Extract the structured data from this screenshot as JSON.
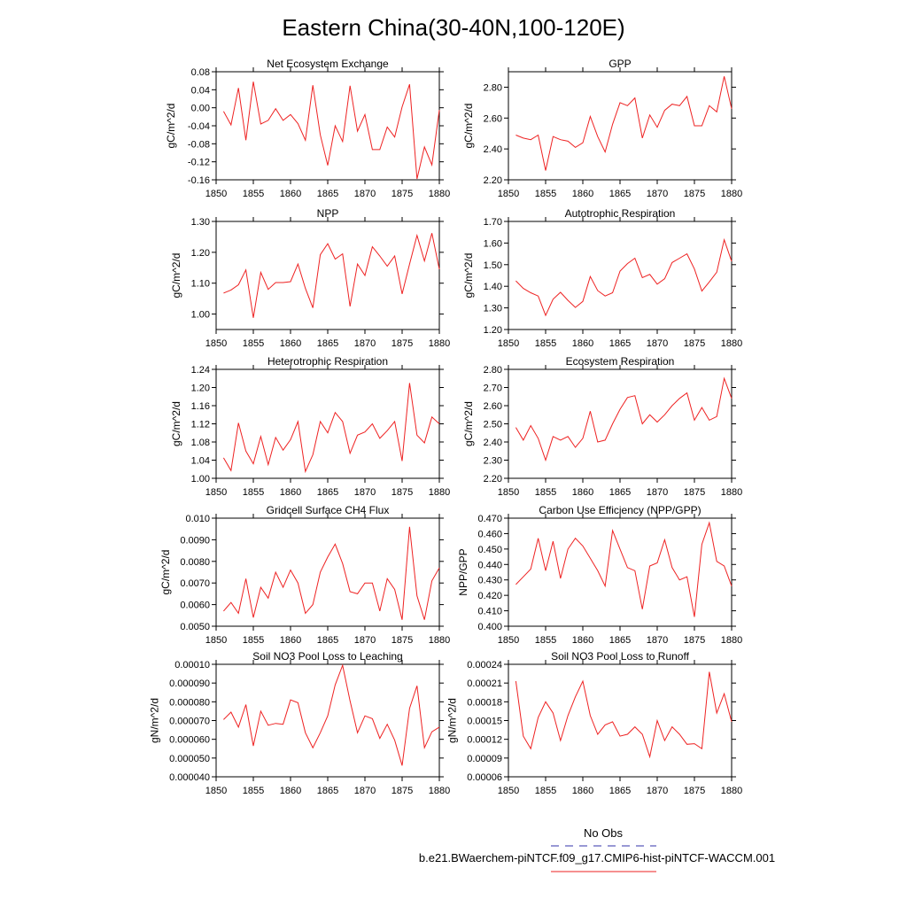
{
  "figure": {
    "title": "Eastern China(30-40N,100-120E)",
    "legend": {
      "entries": [
        {
          "label": "No Obs",
          "color": "#3333aa",
          "style": "dashed"
        },
        {
          "label": "b.e21.BWaerchem-piNTCF.f09_g17.CMIP6-hist-piNTCF-WACCM.001",
          "color": "#ee2222",
          "style": "solid"
        }
      ]
    }
  },
  "chart_data": [
    {
      "type": "line",
      "title": "Net Ecosystem Exchange",
      "ylabel": "gC/m^2/d",
      "xlim": [
        1850,
        1880
      ],
      "xticks": [
        1850,
        1855,
        1860,
        1865,
        1870,
        1875,
        1880
      ],
      "ylim": [
        -0.16,
        0.08
      ],
      "yticks": [
        "-0.16",
        "-0.12",
        "-0.08",
        "-0.04",
        "0.00",
        "0.04",
        "0.08"
      ],
      "line_color": "#ee2222",
      "x": [
        1851,
        1852,
        1853,
        1854,
        1855,
        1856,
        1857,
        1858,
        1859,
        1860,
        1861,
        1862,
        1863,
        1864,
        1865,
        1866,
        1867,
        1868,
        1869,
        1870,
        1871,
        1872,
        1873,
        1874,
        1875,
        1876,
        1877,
        1878,
        1879,
        1880
      ],
      "y": [
        -0.008,
        -0.038,
        0.044,
        -0.072,
        0.058,
        -0.036,
        -0.028,
        -0.002,
        -0.028,
        -0.015,
        -0.035,
        -0.072,
        0.05,
        -0.06,
        -0.128,
        -0.04,
        -0.075,
        0.049,
        -0.052,
        -0.015,
        -0.093,
        -0.093,
        -0.043,
        -0.065,
        0.002,
        0.052,
        -0.158,
        -0.087,
        -0.127,
        -0.005
      ]
    },
    {
      "type": "line",
      "title": "GPP",
      "ylabel": "gC/m^2/d",
      "xlim": [
        1850,
        1880
      ],
      "xticks": [
        1850,
        1855,
        1860,
        1865,
        1870,
        1875,
        1880
      ],
      "ylim": [
        2.2,
        2.9
      ],
      "yticks": [
        "2.20",
        "2.40",
        "2.60",
        "2.80"
      ],
      "line_color": "#ee2222",
      "x": [
        1851,
        1852,
        1853,
        1854,
        1855,
        1856,
        1857,
        1858,
        1859,
        1860,
        1861,
        1862,
        1863,
        1864,
        1865,
        1866,
        1867,
        1868,
        1869,
        1870,
        1871,
        1872,
        1873,
        1874,
        1875,
        1876,
        1877,
        1878,
        1879,
        1880
      ],
      "y": [
        2.49,
        2.47,
        2.46,
        2.49,
        2.26,
        2.48,
        2.46,
        2.45,
        2.41,
        2.44,
        2.61,
        2.48,
        2.38,
        2.56,
        2.7,
        2.68,
        2.73,
        2.47,
        2.62,
        2.54,
        2.65,
        2.69,
        2.68,
        2.74,
        2.55,
        2.55,
        2.68,
        2.64,
        2.87,
        2.66
      ]
    },
    {
      "type": "line",
      "title": "NPP",
      "ylabel": "gC/m^2/d",
      "xlim": [
        1850,
        1880
      ],
      "xticks": [
        1850,
        1855,
        1860,
        1865,
        1870,
        1875,
        1880
      ],
      "ylim": [
        0.95,
        1.3
      ],
      "yticks": [
        "1.00",
        "1.10",
        "1.20",
        "1.30"
      ],
      "line_color": "#ee2222",
      "x": [
        1851,
        1852,
        1853,
        1854,
        1855,
        1856,
        1857,
        1858,
        1859,
        1860,
        1861,
        1862,
        1863,
        1864,
        1865,
        1866,
        1867,
        1868,
        1869,
        1870,
        1871,
        1872,
        1873,
        1874,
        1875,
        1876,
        1877,
        1878,
        1879,
        1880
      ],
      "y": [
        1.068,
        1.078,
        1.095,
        1.143,
        0.988,
        1.135,
        1.08,
        1.102,
        1.102,
        1.105,
        1.162,
        1.083,
        1.02,
        1.192,
        1.228,
        1.178,
        1.195,
        1.025,
        1.162,
        1.125,
        1.218,
        1.188,
        1.155,
        1.188,
        1.065,
        1.162,
        1.255,
        1.172,
        1.262,
        1.145
      ]
    },
    {
      "type": "line",
      "title": "Autotrophic Respiration",
      "ylabel": "gC/m^2/d",
      "xlim": [
        1850,
        1880
      ],
      "xticks": [
        1850,
        1855,
        1860,
        1865,
        1870,
        1875,
        1880
      ],
      "ylim": [
        1.2,
        1.7
      ],
      "yticks": [
        "1.20",
        "1.30",
        "1.40",
        "1.50",
        "1.60",
        "1.70"
      ],
      "line_color": "#ee2222",
      "x": [
        1851,
        1852,
        1853,
        1854,
        1855,
        1856,
        1857,
        1858,
        1859,
        1860,
        1861,
        1862,
        1863,
        1864,
        1865,
        1866,
        1867,
        1868,
        1869,
        1870,
        1871,
        1872,
        1873,
        1874,
        1875,
        1876,
        1877,
        1878,
        1879,
        1880
      ],
      "y": [
        1.425,
        1.39,
        1.37,
        1.355,
        1.265,
        1.34,
        1.372,
        1.335,
        1.302,
        1.33,
        1.445,
        1.38,
        1.355,
        1.37,
        1.47,
        1.505,
        1.53,
        1.44,
        1.455,
        1.41,
        1.435,
        1.51,
        1.53,
        1.55,
        1.48,
        1.378,
        1.42,
        1.465,
        1.615,
        1.515
      ]
    },
    {
      "type": "line",
      "title": "Heterotrophic Respiration",
      "ylabel": "gC/m^2/d",
      "xlim": [
        1850,
        1880
      ],
      "xticks": [
        1850,
        1855,
        1860,
        1865,
        1870,
        1875,
        1880
      ],
      "ylim": [
        1.0,
        1.24
      ],
      "yticks": [
        "1.00",
        "1.04",
        "1.08",
        "1.12",
        "1.16",
        "1.20",
        "1.24"
      ],
      "line_color": "#ee2222",
      "x": [
        1851,
        1852,
        1853,
        1854,
        1855,
        1856,
        1857,
        1858,
        1859,
        1860,
        1861,
        1862,
        1863,
        1864,
        1865,
        1866,
        1867,
        1868,
        1869,
        1870,
        1871,
        1872,
        1873,
        1874,
        1875,
        1876,
        1877,
        1878,
        1879,
        1880
      ],
      "y": [
        1.045,
        1.017,
        1.122,
        1.06,
        1.032,
        1.092,
        1.03,
        1.09,
        1.062,
        1.085,
        1.125,
        1.015,
        1.052,
        1.125,
        1.1,
        1.145,
        1.125,
        1.055,
        1.095,
        1.102,
        1.12,
        1.088,
        1.105,
        1.125,
        1.038,
        1.21,
        1.095,
        1.078,
        1.135,
        1.12
      ]
    },
    {
      "type": "line",
      "title": "Ecosystem Respiration",
      "ylabel": "gC/m^2/d",
      "xlim": [
        1850,
        1880
      ],
      "xticks": [
        1850,
        1855,
        1860,
        1865,
        1870,
        1875,
        1880
      ],
      "ylim": [
        2.2,
        2.8
      ],
      "yticks": [
        "2.20",
        "2.30",
        "2.40",
        "2.50",
        "2.60",
        "2.70",
        "2.80"
      ],
      "line_color": "#ee2222",
      "x": [
        1851,
        1852,
        1853,
        1854,
        1855,
        1856,
        1857,
        1858,
        1859,
        1860,
        1861,
        1862,
        1863,
        1864,
        1865,
        1866,
        1867,
        1868,
        1869,
        1870,
        1871,
        1872,
        1873,
        1874,
        1875,
        1876,
        1877,
        1878,
        1879,
        1880
      ],
      "y": [
        2.48,
        2.41,
        2.49,
        2.42,
        2.3,
        2.43,
        2.41,
        2.43,
        2.37,
        2.42,
        2.57,
        2.4,
        2.41,
        2.5,
        2.58,
        2.645,
        2.655,
        2.5,
        2.55,
        2.51,
        2.55,
        2.6,
        2.64,
        2.67,
        2.52,
        2.59,
        2.52,
        2.54,
        2.75,
        2.64
      ]
    },
    {
      "type": "line",
      "title": "Gridcell Surface CH4 Flux",
      "ylabel": "gC/m^2/d",
      "xlim": [
        1850,
        1880
      ],
      "xticks": [
        1850,
        1855,
        1860,
        1865,
        1870,
        1875,
        1880
      ],
      "ylim": [
        0.005,
        0.01
      ],
      "yticks": [
        "0.0050",
        "0.0060",
        "0.0070",
        "0.0080",
        "0.0090",
        "0.010"
      ],
      "line_color": "#ee2222",
      "x": [
        1851,
        1852,
        1853,
        1854,
        1855,
        1856,
        1857,
        1858,
        1859,
        1860,
        1861,
        1862,
        1863,
        1864,
        1865,
        1866,
        1867,
        1868,
        1869,
        1870,
        1871,
        1872,
        1873,
        1874,
        1875,
        1876,
        1877,
        1878,
        1879,
        1880
      ],
      "y": [
        0.0057,
        0.0061,
        0.0056,
        0.0072,
        0.0054,
        0.0068,
        0.0063,
        0.0075,
        0.0068,
        0.0076,
        0.007,
        0.0056,
        0.006,
        0.0075,
        0.0082,
        0.0088,
        0.0079,
        0.0066,
        0.0065,
        0.007,
        0.007,
        0.0057,
        0.0072,
        0.0067,
        0.0053,
        0.0096,
        0.0064,
        0.0053,
        0.0071,
        0.0077
      ]
    },
    {
      "type": "line",
      "title": "Carbon Use Efficiency (NPP/GPP)",
      "ylabel": "NPP/GPP",
      "xlim": [
        1850,
        1880
      ],
      "xticks": [
        1850,
        1855,
        1860,
        1865,
        1870,
        1875,
        1880
      ],
      "ylim": [
        0.4,
        0.47
      ],
      "yticks": [
        "0.400",
        "0.410",
        "0.420",
        "0.430",
        "0.440",
        "0.450",
        "0.460",
        "0.470"
      ],
      "line_color": "#ee2222",
      "x": [
        1851,
        1852,
        1853,
        1854,
        1855,
        1856,
        1857,
        1858,
        1859,
        1860,
        1861,
        1862,
        1863,
        1864,
        1865,
        1866,
        1867,
        1868,
        1869,
        1870,
        1871,
        1872,
        1873,
        1874,
        1875,
        1876,
        1877,
        1878,
        1879,
        1880
      ],
      "y": [
        0.427,
        0.432,
        0.437,
        0.457,
        0.436,
        0.455,
        0.431,
        0.45,
        0.457,
        0.452,
        0.444,
        0.436,
        0.426,
        0.462,
        0.45,
        0.438,
        0.436,
        0.411,
        0.439,
        0.441,
        0.456,
        0.438,
        0.43,
        0.432,
        0.406,
        0.453,
        0.467,
        0.442,
        0.439,
        0.426
      ]
    },
    {
      "type": "line",
      "title": "Soil NO3 Pool Loss to Leaching",
      "ylabel": "gN/m^2/d",
      "xlim": [
        1850,
        1880
      ],
      "xticks": [
        1850,
        1855,
        1860,
        1865,
        1870,
        1875,
        1880
      ],
      "ylim": [
        4e-05,
        0.0001
      ],
      "yticks": [
        "0.000040",
        "0.000050",
        "0.000060",
        "0.000070",
        "0.000080",
        "0.000090",
        "0.00010"
      ],
      "line_color": "#ee2222",
      "x": [
        1851,
        1852,
        1853,
        1854,
        1855,
        1856,
        1857,
        1858,
        1859,
        1860,
        1861,
        1862,
        1863,
        1864,
        1865,
        1866,
        1867,
        1868,
        1869,
        1870,
        1871,
        1872,
        1873,
        1874,
        1875,
        1876,
        1877,
        1878,
        1879,
        1880
      ],
      "y": [
        7.05e-05,
        7.45e-05,
        6.65e-05,
        7.85e-05,
        5.65e-05,
        7.5e-05,
        6.75e-05,
        6.85e-05,
        6.8e-05,
        8.1e-05,
        7.95e-05,
        6.35e-05,
        5.55e-05,
        6.35e-05,
        7.25e-05,
        8.9e-05,
        9.95e-05,
        8.05e-05,
        6.35e-05,
        7.25e-05,
        7.1e-05,
        6.05e-05,
        6.8e-05,
        5.95e-05,
        4.6e-05,
        7.65e-05,
        8.85e-05,
        5.55e-05,
        6.4e-05,
        6.65e-05
      ]
    },
    {
      "type": "line",
      "title": "Soil NO3 Pool Loss to Runoff",
      "ylabel": "gN/m^2/d",
      "xlim": [
        1850,
        1880
      ],
      "xticks": [
        1850,
        1855,
        1860,
        1865,
        1870,
        1875,
        1880
      ],
      "ylim": [
        6e-05,
        0.00024
      ],
      "yticks": [
        "0.00006",
        "0.00009",
        "0.00012",
        "0.00015",
        "0.00018",
        "0.00021",
        "0.00024"
      ],
      "line_color": "#ee2222",
      "x": [
        1851,
        1852,
        1853,
        1854,
        1855,
        1856,
        1857,
        1858,
        1859,
        1860,
        1861,
        1862,
        1863,
        1864,
        1865,
        1866,
        1867,
        1868,
        1869,
        1870,
        1871,
        1872,
        1873,
        1874,
        1875,
        1876,
        1877,
        1878,
        1879,
        1880
      ],
      "y": [
        0.000213,
        0.000125,
        0.000105,
        0.000155,
        0.00018,
        0.000162,
        0.000118,
        0.000158,
        0.000188,
        0.000213,
        0.000158,
        0.000128,
        0.000143,
        0.000148,
        0.000125,
        0.000128,
        0.00014,
        0.000128,
        9.2e-05,
        0.00015,
        0.000118,
        0.00014,
        0.000128,
        0.000112,
        0.000113,
        0.000105,
        0.000228,
        0.000162,
        0.000193,
        0.000148
      ]
    }
  ]
}
